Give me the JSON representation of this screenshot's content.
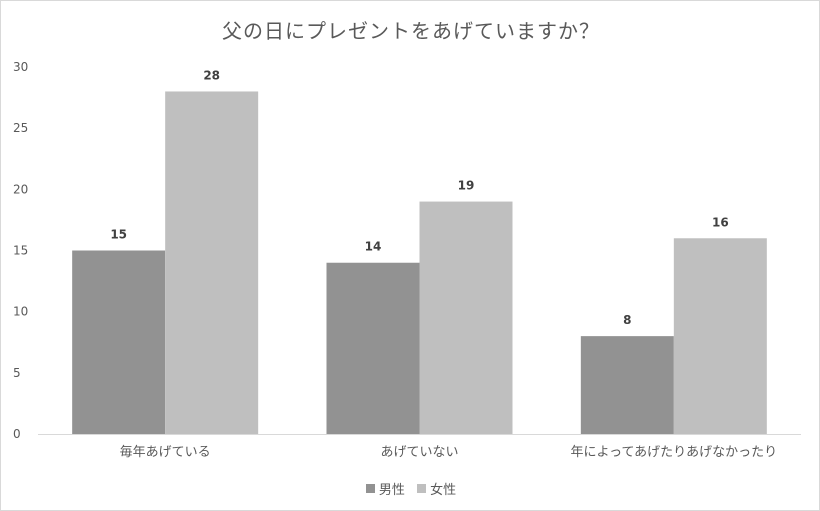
{
  "chart_data": {
    "type": "bar",
    "title": "父の日にプレゼントをあげていますか？",
    "categories": [
      "毎年あげている",
      "あげていない",
      "年によってあげたりあげなかったり"
    ],
    "series": [
      {
        "name": "男性",
        "values": [
          15,
          14,
          8
        ],
        "color": "#929292"
      },
      {
        "name": "女性",
        "values": [
          28,
          19,
          16
        ],
        "color": "#bfbfbf"
      }
    ],
    "ylim": [
      0,
      30
    ],
    "yticks": [
      0,
      5,
      10,
      15,
      20,
      25,
      30
    ],
    "grid": false,
    "data_labels": true,
    "legend_position": "bottom"
  }
}
